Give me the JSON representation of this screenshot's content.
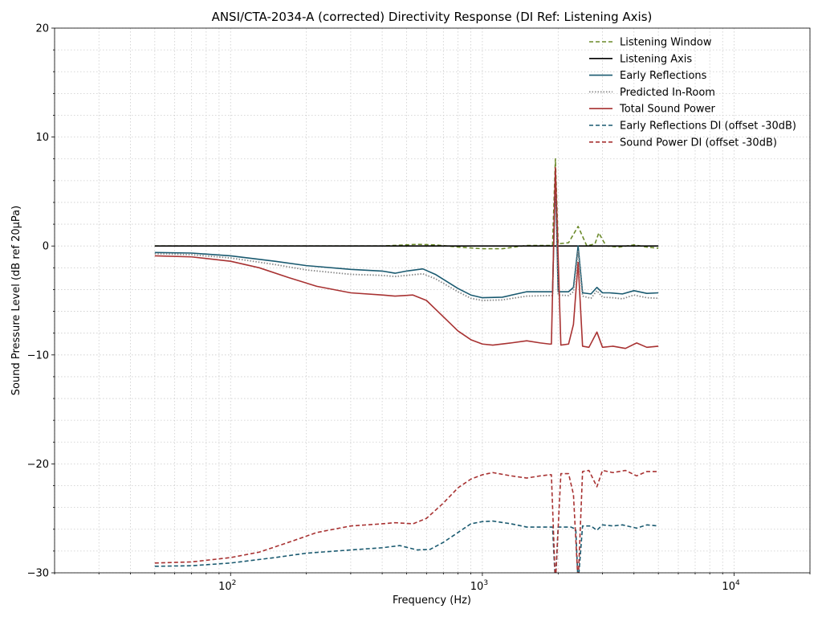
{
  "chart_data": {
    "type": "line",
    "title": "ANSI/CTA-2034-A (corrected) Directivity Response (DI Ref: Listening Axis)",
    "xlabel": "Frequency (Hz)",
    "ylabel": "Sound Pressure Level (dB ref 20μPa)",
    "x_scale": "log",
    "xlim": [
      20,
      20000
    ],
    "ylim": [
      -30,
      20
    ],
    "grid": true,
    "legend_position": "top-right",
    "x_ticks": [
      {
        "value": 100,
        "label": "10",
        "exp": "2"
      },
      {
        "value": 1000,
        "label": "10",
        "exp": "3"
      },
      {
        "value": 10000,
        "label": "10",
        "exp": "4"
      }
    ],
    "y_ticks": [
      {
        "value": 20,
        "label": "20"
      },
      {
        "value": 10,
        "label": "10"
      },
      {
        "value": 0,
        "label": "0"
      },
      {
        "value": -10,
        "label": "−10"
      },
      {
        "value": -20,
        "label": "−20"
      },
      {
        "value": -30,
        "label": "−30"
      }
    ],
    "series": [
      {
        "name": "Listening Window",
        "color": "#6b8a2a",
        "dash": "dashed",
        "points": [
          [
            50,
            0
          ],
          [
            400,
            0
          ],
          [
            550,
            0.15
          ],
          [
            650,
            0.1
          ],
          [
            800,
            -0.1
          ],
          [
            1000,
            -0.25
          ],
          [
            1200,
            -0.25
          ],
          [
            1500,
            0.05
          ],
          [
            1850,
            0.05
          ],
          [
            1900,
            0.05
          ],
          [
            1950,
            8
          ],
          [
            2000,
            0.2
          ],
          [
            2200,
            0.3
          ],
          [
            2400,
            1.8
          ],
          [
            2600,
            0
          ],
          [
            2800,
            0.2
          ],
          [
            2900,
            1.2
          ],
          [
            3100,
            0
          ],
          [
            3500,
            -0.1
          ],
          [
            4000,
            0.1
          ],
          [
            4500,
            -0.1
          ],
          [
            5000,
            -0.2
          ]
        ]
      },
      {
        "name": "Listening Axis",
        "color": "#000000",
        "dash": "solid",
        "points": [
          [
            50,
            0
          ],
          [
            5000,
            0
          ]
        ]
      },
      {
        "name": "Early Reflections",
        "color": "#1a5a70",
        "dash": "solid",
        "points": [
          [
            50,
            -0.6
          ],
          [
            70,
            -0.65
          ],
          [
            100,
            -0.9
          ],
          [
            150,
            -1.4
          ],
          [
            200,
            -1.8
          ],
          [
            300,
            -2.15
          ],
          [
            400,
            -2.3
          ],
          [
            450,
            -2.5
          ],
          [
            500,
            -2.3
          ],
          [
            580,
            -2.1
          ],
          [
            650,
            -2.6
          ],
          [
            800,
            -3.9
          ],
          [
            900,
            -4.5
          ],
          [
            1000,
            -4.75
          ],
          [
            1200,
            -4.7
          ],
          [
            1500,
            -4.2
          ],
          [
            1850,
            -4.2
          ],
          [
            1900,
            -4.2
          ],
          [
            1950,
            6.5
          ],
          [
            2000,
            -4.2
          ],
          [
            2200,
            -4.2
          ],
          [
            2300,
            -3.8
          ],
          [
            2400,
            0
          ],
          [
            2500,
            -4.3
          ],
          [
            2700,
            -4.4
          ],
          [
            2850,
            -3.8
          ],
          [
            3000,
            -4.3
          ],
          [
            3200,
            -4.3
          ],
          [
            3600,
            -4.4
          ],
          [
            4000,
            -4.1
          ],
          [
            4500,
            -4.35
          ],
          [
            5000,
            -4.3
          ]
        ]
      },
      {
        "name": "Predicted In-Room",
        "color": "#888888",
        "dash": "dotted",
        "points": [
          [
            50,
            -0.7
          ],
          [
            70,
            -0.8
          ],
          [
            100,
            -1.1
          ],
          [
            150,
            -1.7
          ],
          [
            200,
            -2.2
          ],
          [
            300,
            -2.6
          ],
          [
            400,
            -2.7
          ],
          [
            450,
            -2.8
          ],
          [
            500,
            -2.7
          ],
          [
            580,
            -2.55
          ],
          [
            650,
            -3.0
          ],
          [
            800,
            -4.2
          ],
          [
            900,
            -4.8
          ],
          [
            1000,
            -5.0
          ],
          [
            1200,
            -4.95
          ],
          [
            1500,
            -4.6
          ],
          [
            1850,
            -4.55
          ],
          [
            1900,
            -4.55
          ],
          [
            1950,
            6.6
          ],
          [
            2000,
            -4.5
          ],
          [
            2200,
            -4.55
          ],
          [
            2300,
            -4.2
          ],
          [
            2400,
            -0.5
          ],
          [
            2500,
            -4.6
          ],
          [
            2700,
            -4.8
          ],
          [
            2850,
            -4.1
          ],
          [
            3000,
            -4.7
          ],
          [
            3300,
            -4.75
          ],
          [
            3600,
            -4.85
          ],
          [
            4000,
            -4.5
          ],
          [
            4500,
            -4.75
          ],
          [
            5000,
            -4.8
          ]
        ]
      },
      {
        "name": "Total Sound Power",
        "color": "#a83232",
        "dash": "solid",
        "points": [
          [
            50,
            -0.9
          ],
          [
            70,
            -1.0
          ],
          [
            100,
            -1.4
          ],
          [
            130,
            -2.0
          ],
          [
            170,
            -2.9
          ],
          [
            220,
            -3.7
          ],
          [
            300,
            -4.3
          ],
          [
            400,
            -4.5
          ],
          [
            450,
            -4.6
          ],
          [
            530,
            -4.5
          ],
          [
            600,
            -5.0
          ],
          [
            700,
            -6.5
          ],
          [
            800,
            -7.8
          ],
          [
            900,
            -8.6
          ],
          [
            1000,
            -9.0
          ],
          [
            1100,
            -9.1
          ],
          [
            1300,
            -8.9
          ],
          [
            1500,
            -8.7
          ],
          [
            1700,
            -8.9
          ],
          [
            1850,
            -9.0
          ],
          [
            1880,
            -9.0
          ],
          [
            1950,
            7.2
          ],
          [
            2050,
            -9.1
          ],
          [
            2200,
            -9.0
          ],
          [
            2300,
            -7.2
          ],
          [
            2400,
            -1.5
          ],
          [
            2500,
            -9.2
          ],
          [
            2650,
            -9.3
          ],
          [
            2850,
            -7.9
          ],
          [
            3000,
            -9.3
          ],
          [
            3300,
            -9.2
          ],
          [
            3700,
            -9.4
          ],
          [
            4100,
            -8.9
          ],
          [
            4500,
            -9.3
          ],
          [
            5000,
            -9.2
          ]
        ]
      },
      {
        "name": "Early Reflections DI (offset -30dB)",
        "color": "#1a5a70",
        "dash": "dashed",
        "points": [
          [
            50,
            -29.4
          ],
          [
            70,
            -29.35
          ],
          [
            100,
            -29.1
          ],
          [
            150,
            -28.6
          ],
          [
            200,
            -28.2
          ],
          [
            300,
            -27.9
          ],
          [
            400,
            -27.7
          ],
          [
            470,
            -27.5
          ],
          [
            550,
            -27.9
          ],
          [
            620,
            -27.85
          ],
          [
            700,
            -27.2
          ],
          [
            800,
            -26.3
          ],
          [
            900,
            -25.5
          ],
          [
            1000,
            -25.3
          ],
          [
            1100,
            -25.25
          ],
          [
            1300,
            -25.5
          ],
          [
            1500,
            -25.8
          ],
          [
            1850,
            -25.8
          ],
          [
            1900,
            -25.8
          ],
          [
            1950,
            -31
          ],
          [
            2000,
            -25.8
          ],
          [
            2250,
            -25.8
          ],
          [
            2350,
            -26.0
          ],
          [
            2400,
            -31
          ],
          [
            2500,
            -25.7
          ],
          [
            2700,
            -25.7
          ],
          [
            2850,
            -26.1
          ],
          [
            3000,
            -25.6
          ],
          [
            3300,
            -25.7
          ],
          [
            3600,
            -25.6
          ],
          [
            4100,
            -25.9
          ],
          [
            4500,
            -25.6
          ],
          [
            5000,
            -25.7
          ]
        ]
      },
      {
        "name": "Sound Power DI (offset -30dB)",
        "color": "#a83232",
        "dash": "dashed",
        "points": [
          [
            50,
            -29.1
          ],
          [
            70,
            -29.0
          ],
          [
            100,
            -28.6
          ],
          [
            130,
            -28.1
          ],
          [
            170,
            -27.2
          ],
          [
            220,
            -26.3
          ],
          [
            300,
            -25.7
          ],
          [
            400,
            -25.5
          ],
          [
            450,
            -25.4
          ],
          [
            530,
            -25.5
          ],
          [
            600,
            -25.0
          ],
          [
            700,
            -23.6
          ],
          [
            800,
            -22.2
          ],
          [
            900,
            -21.4
          ],
          [
            1000,
            -21.0
          ],
          [
            1100,
            -20.8
          ],
          [
            1300,
            -21.1
          ],
          [
            1500,
            -21.3
          ],
          [
            1700,
            -21.1
          ],
          [
            1850,
            -21.0
          ],
          [
            1880,
            -21.0
          ],
          [
            1950,
            -31
          ],
          [
            2050,
            -20.9
          ],
          [
            2200,
            -20.9
          ],
          [
            2300,
            -22.8
          ],
          [
            2400,
            -31
          ],
          [
            2500,
            -20.7
          ],
          [
            2650,
            -20.6
          ],
          [
            2850,
            -22.1
          ],
          [
            3000,
            -20.6
          ],
          [
            3300,
            -20.8
          ],
          [
            3700,
            -20.6
          ],
          [
            4100,
            -21.1
          ],
          [
            4500,
            -20.7
          ],
          [
            5000,
            -20.7
          ]
        ]
      }
    ]
  }
}
